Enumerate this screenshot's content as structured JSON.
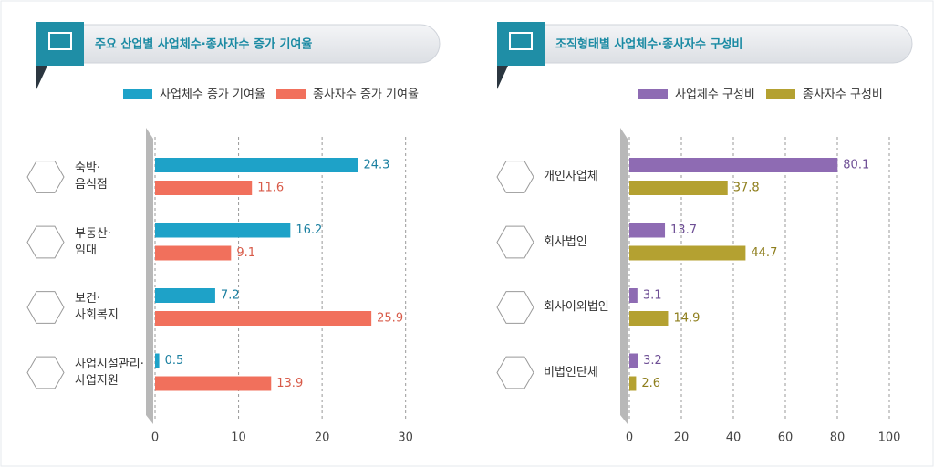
{
  "chart_data": [
    {
      "type": "bar",
      "title": "주요 산업별 사업체수·종사자수 증가 기여율",
      "categories": [
        "숙박·\n음식점",
        "부동산·\n임대",
        "보건·\n사회복지",
        "사업시설관리·\n사업지원"
      ],
      "series": [
        {
          "name": "사업체수 증가 기여율",
          "color": "#1ea2c8",
          "values": [
            24.3,
            16.2,
            7.2,
            0.5
          ]
        },
        {
          "name": "종사자수 증가 기여율",
          "color": "#f1705c",
          "values": [
            11.6,
            9.1,
            25.9,
            13.9
          ]
        }
      ],
      "xlim": [
        0,
        32
      ],
      "xticks": [
        0,
        10,
        20,
        30
      ],
      "grid": true
    },
    {
      "type": "bar",
      "title": "조직형태별 사업체수·종사자수 구성비",
      "categories": [
        "개인사업체",
        "회사법인",
        "회사이외법인",
        "비법인단체"
      ],
      "series": [
        {
          "name": "사업체수 구성비",
          "color": "#8e6bb3",
          "values": [
            80.1,
            13.7,
            3.1,
            3.2
          ]
        },
        {
          "name": "종사자수 구성비",
          "color": "#b4a131",
          "values": [
            37.8,
            44.7,
            14.9,
            2.6
          ]
        }
      ],
      "xlim": [
        0,
        100
      ],
      "xticks": [
        0,
        20,
        40,
        60,
        80,
        100
      ],
      "grid": true
    }
  ]
}
